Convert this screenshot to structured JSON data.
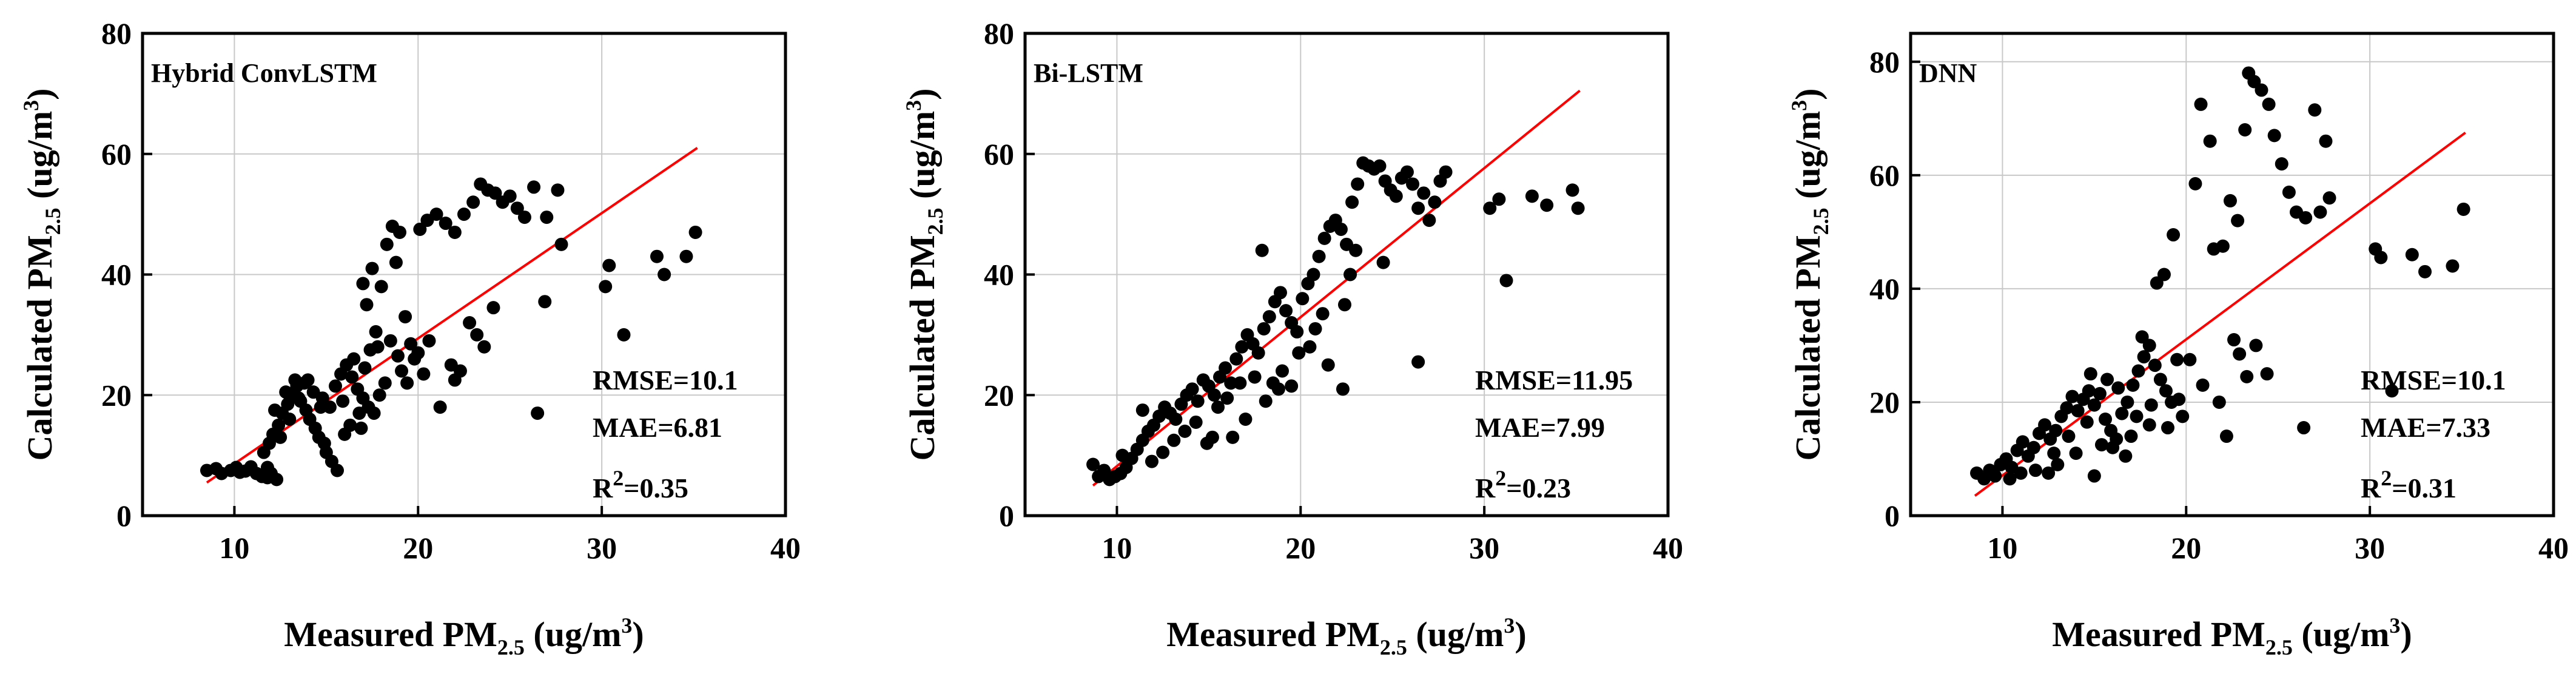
{
  "colors": {
    "points": "#000000",
    "fit_line": "#ff0000",
    "grid": "#c8c8c8",
    "frame": "#000000"
  },
  "chart_data": [
    {
      "type": "scatter",
      "title": "Hybrid ConvLSTM",
      "xlabel": {
        "main": "Measured PM",
        "sub": "2.5",
        "unit_pre": " (ug/m",
        "unit_sup": "3",
        "unit_post": ")"
      },
      "ylabel": {
        "main": "Calculated PM",
        "sub": "2.5",
        "unit_pre": " (ug/m",
        "unit_sup": "3",
        "unit_post": ")"
      },
      "xlim": [
        5,
        40
      ],
      "ylim": [
        0,
        80
      ],
      "xticks": [
        "10",
        "20",
        "30",
        "40"
      ],
      "yticks": [
        "0",
        "20",
        "40",
        "60",
        "80"
      ],
      "grid": true,
      "fit_line": {
        "x": [
          8.5,
          35.2
        ],
        "y": [
          5.5,
          61
        ]
      },
      "metrics": {
        "rmse": "RMSE=10.1",
        "mae": "MAE=6.81",
        "r2_main": "R",
        "r2_sup": "2",
        "r2_value": "=0.35"
      },
      "points": [
        [
          8.5,
          7.5
        ],
        [
          9.0,
          7.8
        ],
        [
          9.3,
          7.0
        ],
        [
          9.8,
          7.5
        ],
        [
          10.1,
          8.0
        ],
        [
          10.3,
          7.2
        ],
        [
          10.6,
          7.4
        ],
        [
          10.9,
          8.1
        ],
        [
          11.2,
          7.0
        ],
        [
          11.5,
          6.5
        ],
        [
          11.8,
          6.3
        ],
        [
          12.0,
          7.0
        ],
        [
          12.3,
          6.0
        ],
        [
          11.6,
          10.5
        ],
        [
          11.9,
          12.0
        ],
        [
          12.1,
          13.5
        ],
        [
          12.4,
          15.0
        ],
        [
          12.6,
          17.0
        ],
        [
          12.9,
          18.5
        ],
        [
          13.1,
          20.0
        ],
        [
          13.4,
          21.5
        ],
        [
          13.6,
          19.0
        ],
        [
          13.9,
          17.5
        ],
        [
          14.1,
          16.0
        ],
        [
          14.4,
          14.5
        ],
        [
          14.6,
          13.0
        ],
        [
          14.9,
          12.0
        ],
        [
          12.2,
          17.5
        ],
        [
          12.8,
          20.5
        ],
        [
          13.3,
          22.5
        ],
        [
          13.8,
          22.0
        ],
        [
          14.3,
          20.5
        ],
        [
          14.8,
          19.5
        ],
        [
          15.2,
          18.0
        ],
        [
          15.5,
          21.5
        ],
        [
          15.8,
          23.5
        ],
        [
          16.1,
          25.0
        ],
        [
          16.4,
          23.0
        ],
        [
          16.7,
          21.0
        ],
        [
          17.0,
          19.5
        ],
        [
          17.3,
          18.0
        ],
        [
          17.6,
          17.0
        ],
        [
          17.9,
          20.0
        ],
        [
          18.2,
          22.0
        ],
        [
          15.0,
          10.5
        ],
        [
          15.3,
          9.0
        ],
        [
          15.6,
          7.5
        ],
        [
          16.0,
          13.5
        ],
        [
          16.3,
          15.0
        ],
        [
          16.8,
          17.0
        ],
        [
          17.1,
          24.5
        ],
        [
          17.4,
          27.5
        ],
        [
          17.7,
          30.5
        ],
        [
          17.2,
          35.0
        ],
        [
          17.0,
          38.5
        ],
        [
          17.5,
          41.0
        ],
        [
          18.0,
          38.0
        ],
        [
          18.3,
          45.0
        ],
        [
          18.6,
          48.0
        ],
        [
          19.0,
          47.0
        ],
        [
          18.8,
          42.0
        ],
        [
          19.3,
          33.0
        ],
        [
          19.6,
          28.5
        ],
        [
          19.8,
          26.0
        ],
        [
          19.1,
          24.0
        ],
        [
          18.5,
          29.0
        ],
        [
          20.1,
          47.5
        ],
        [
          20.5,
          49.0
        ],
        [
          21.0,
          50.0
        ],
        [
          21.5,
          48.5
        ],
        [
          22.0,
          47.0
        ],
        [
          22.5,
          50.0
        ],
        [
          23.0,
          52.0
        ],
        [
          23.4,
          55.0
        ],
        [
          23.8,
          54.0
        ],
        [
          24.2,
          53.5
        ],
        [
          24.6,
          52.0
        ],
        [
          25.0,
          53.0
        ],
        [
          25.4,
          51.0
        ],
        [
          25.8,
          49.5
        ],
        [
          26.3,
          54.5
        ],
        [
          27.0,
          49.5
        ],
        [
          27.6,
          54.0
        ],
        [
          27.8,
          45.0
        ],
        [
          22.8,
          32.0
        ],
        [
          23.2,
          30.0
        ],
        [
          23.6,
          28.0
        ],
        [
          22.3,
          24.0
        ],
        [
          22.0,
          22.5
        ],
        [
          21.2,
          18.0
        ],
        [
          20.0,
          27.0
        ],
        [
          20.6,
          29.0
        ],
        [
          21.8,
          25.0
        ],
        [
          24.1,
          34.5
        ],
        [
          26.5,
          17.0
        ],
        [
          26.9,
          35.5
        ],
        [
          30.2,
          38.0
        ],
        [
          30.4,
          41.5
        ],
        [
          31.2,
          30.0
        ],
        [
          33.0,
          43.0
        ],
        [
          33.4,
          40.0
        ],
        [
          34.6,
          43.0
        ],
        [
          35.1,
          47.0
        ],
        [
          14.0,
          22.5
        ],
        [
          13.5,
          19.5
        ],
        [
          13.0,
          16.0
        ],
        [
          12.5,
          13.0
        ],
        [
          11.8,
          8.0
        ],
        [
          16.5,
          26.0
        ],
        [
          17.8,
          28.0
        ],
        [
          18.9,
          26.5
        ],
        [
          19.4,
          22.0
        ],
        [
          20.3,
          23.5
        ],
        [
          15.9,
          19.0
        ],
        [
          16.9,
          14.5
        ],
        [
          14.7,
          18.0
        ]
      ]
    },
    {
      "type": "scatter",
      "title": "Bi-LSTM",
      "xlabel": {
        "main": "Measured PM",
        "sub": "2.5",
        "unit_pre": " (ug/m",
        "unit_sup": "3",
        "unit_post": ")"
      },
      "ylabel": {
        "main": "Calculated PM",
        "sub": "2.5",
        "unit_pre": " (ug/m",
        "unit_sup": "3",
        "unit_post": ")"
      },
      "xlim": [
        5,
        40
      ],
      "ylim": [
        0,
        80
      ],
      "xticks": [
        "10",
        "20",
        "30",
        "40"
      ],
      "yticks": [
        "0",
        "20",
        "40",
        "60",
        "80"
      ],
      "grid": true,
      "fit_line": {
        "x": [
          8.7,
          35.2
        ],
        "y": [
          5.0,
          70.5
        ]
      },
      "metrics": {
        "rmse": "RMSE=11.95",
        "mae": "MAE=7.99",
        "r2_main": "R",
        "r2_sup": "2",
        "r2_value": "=0.23"
      },
      "points": [
        [
          8.7,
          8.5
        ],
        [
          9.0,
          6.5
        ],
        [
          9.3,
          7.5
        ],
        [
          9.6,
          6.0
        ],
        [
          9.9,
          6.5
        ],
        [
          10.2,
          7.0
        ],
        [
          10.5,
          8.0
        ],
        [
          10.8,
          9.5
        ],
        [
          11.1,
          11.0
        ],
        [
          11.4,
          12.5
        ],
        [
          11.7,
          14.0
        ],
        [
          12.0,
          15.0
        ],
        [
          12.3,
          16.5
        ],
        [
          12.6,
          18.0
        ],
        [
          12.9,
          17.0
        ],
        [
          13.2,
          16.0
        ],
        [
          13.5,
          18.5
        ],
        [
          13.8,
          20.0
        ],
        [
          14.1,
          21.0
        ],
        [
          14.4,
          19.0
        ],
        [
          14.7,
          22.5
        ],
        [
          15.0,
          21.5
        ],
        [
          15.3,
          20.0
        ],
        [
          15.6,
          23.0
        ],
        [
          15.9,
          24.5
        ],
        [
          16.2,
          22.0
        ],
        [
          16.5,
          26.0
        ],
        [
          16.8,
          28.0
        ],
        [
          17.1,
          30.0
        ],
        [
          17.4,
          28.5
        ],
        [
          17.7,
          27.0
        ],
        [
          18.0,
          31.0
        ],
        [
          18.3,
          33.0
        ],
        [
          18.6,
          35.5
        ],
        [
          18.9,
          37.0
        ],
        [
          19.2,
          34.0
        ],
        [
          19.5,
          32.0
        ],
        [
          19.8,
          30.5
        ],
        [
          20.1,
          36.0
        ],
        [
          20.4,
          38.5
        ],
        [
          20.7,
          40.0
        ],
        [
          21.0,
          43.0
        ],
        [
          21.3,
          46.0
        ],
        [
          21.6,
          48.0
        ],
        [
          21.9,
          49.0
        ],
        [
          22.2,
          47.5
        ],
        [
          22.5,
          45.0
        ],
        [
          22.8,
          52.0
        ],
        [
          23.1,
          55.0
        ],
        [
          23.4,
          58.5
        ],
        [
          23.7,
          58.0
        ],
        [
          24.0,
          57.5
        ],
        [
          24.3,
          58.0
        ],
        [
          24.6,
          55.5
        ],
        [
          24.9,
          54.0
        ],
        [
          25.2,
          53.0
        ],
        [
          25.5,
          56.0
        ],
        [
          25.8,
          57.0
        ],
        [
          26.1,
          55.0
        ],
        [
          26.4,
          51.0
        ],
        [
          26.7,
          53.5
        ],
        [
          27.0,
          49.0
        ],
        [
          27.3,
          52.0
        ],
        [
          27.6,
          55.5
        ],
        [
          27.9,
          57.0
        ],
        [
          23.0,
          44.0
        ],
        [
          22.7,
          40.0
        ],
        [
          22.4,
          35.0
        ],
        [
          21.5,
          25.0
        ],
        [
          22.3,
          21.0
        ],
        [
          20.5,
          28.0
        ],
        [
          19.9,
          27.0
        ],
        [
          19.0,
          24.0
        ],
        [
          18.5,
          22.0
        ],
        [
          17.5,
          23.0
        ],
        [
          16.7,
          22.0
        ],
        [
          16.0,
          19.5
        ],
        [
          15.5,
          18.0
        ],
        [
          15.2,
          13.0
        ],
        [
          14.9,
          12.0
        ],
        [
          16.3,
          13.0
        ],
        [
          17.0,
          16.0
        ],
        [
          18.1,
          19.0
        ],
        [
          18.8,
          21.0
        ],
        [
          19.5,
          21.5
        ],
        [
          20.8,
          31.0
        ],
        [
          21.2,
          33.5
        ],
        [
          24.5,
          42.0
        ],
        [
          26.4,
          25.5
        ],
        [
          30.3,
          51.0
        ],
        [
          30.8,
          52.5
        ],
        [
          31.2,
          39.0
        ],
        [
          32.6,
          53.0
        ],
        [
          33.4,
          51.5
        ],
        [
          34.8,
          54.0
        ],
        [
          35.1,
          51.0
        ],
        [
          12.5,
          10.5
        ],
        [
          13.1,
          12.5
        ],
        [
          13.7,
          14.0
        ],
        [
          14.3,
          15.5
        ],
        [
          11.4,
          17.5
        ],
        [
          17.9,
          44.0
        ],
        [
          10.3,
          10.0
        ],
        [
          11.9,
          9.0
        ]
      ]
    },
    {
      "type": "scatter",
      "title": "DNN",
      "xlabel": {
        "main": "Measured PM",
        "sub": "2.5",
        "unit_pre": " (ug/m",
        "unit_sup": "3",
        "unit_post": ")"
      },
      "ylabel": {
        "main": "Calculated PM",
        "sub": "2.5",
        "unit_pre": " (ug/m",
        "unit_sup": "3",
        "unit_post": ")"
      },
      "xlim": [
        5,
        40
      ],
      "ylim": [
        0,
        85
      ],
      "xticks": [
        "10",
        "20",
        "30",
        "40"
      ],
      "yticks": [
        "0",
        "20",
        "40",
        "60",
        "80"
      ],
      "grid": true,
      "fit_line": {
        "x": [
          8.5,
          35.2
        ],
        "y": [
          3.5,
          67.5
        ]
      },
      "metrics": {
        "rmse": "RMSE=10.1",
        "mae": "MAE=7.33",
        "r2_main": "R",
        "r2_sup": "2",
        "r2_value": "=0.31"
      },
      "points": [
        [
          8.6,
          7.5
        ],
        [
          9.0,
          6.5
        ],
        [
          9.3,
          8.0
        ],
        [
          9.6,
          7.0
        ],
        [
          9.9,
          9.0
        ],
        [
          10.2,
          10.0
        ],
        [
          10.5,
          8.5
        ],
        [
          10.8,
          11.5
        ],
        [
          11.1,
          13.0
        ],
        [
          11.4,
          10.5
        ],
        [
          11.7,
          12.0
        ],
        [
          12.0,
          14.5
        ],
        [
          12.3,
          16.0
        ],
        [
          12.6,
          13.5
        ],
        [
          12.9,
          15.0
        ],
        [
          13.2,
          17.5
        ],
        [
          13.5,
          19.0
        ],
        [
          13.8,
          21.0
        ],
        [
          14.1,
          18.5
        ],
        [
          14.4,
          20.5
        ],
        [
          14.7,
          22.0
        ],
        [
          15.0,
          19.5
        ],
        [
          15.3,
          21.5
        ],
        [
          15.6,
          17.0
        ],
        [
          15.9,
          15.0
        ],
        [
          16.2,
          13.5
        ],
        [
          16.5,
          18.0
        ],
        [
          16.8,
          20.0
        ],
        [
          17.1,
          23.0
        ],
        [
          17.4,
          25.5
        ],
        [
          17.7,
          28.0
        ],
        [
          18.0,
          30.0
        ],
        [
          18.3,
          26.5
        ],
        [
          18.6,
          24.0
        ],
        [
          18.9,
          22.0
        ],
        [
          19.2,
          20.0
        ],
        [
          19.5,
          27.5
        ],
        [
          13.0,
          9.0
        ],
        [
          14.0,
          11.0
        ],
        [
          15.0,
          7.0
        ],
        [
          16.0,
          12.0
        ],
        [
          17.0,
          14.0
        ],
        [
          18.0,
          16.0
        ],
        [
          19.0,
          15.5
        ],
        [
          19.8,
          17.5
        ],
        [
          20.5,
          58.5
        ],
        [
          20.8,
          72.5
        ],
        [
          21.3,
          66.0
        ],
        [
          21.5,
          47.0
        ],
        [
          22.0,
          47.5
        ],
        [
          22.4,
          55.5
        ],
        [
          22.8,
          52.0
        ],
        [
          23.2,
          68.0
        ],
        [
          23.4,
          78.0
        ],
        [
          23.7,
          76.5
        ],
        [
          24.1,
          75.0
        ],
        [
          24.5,
          72.5
        ],
        [
          24.8,
          67.0
        ],
        [
          25.2,
          62.0
        ],
        [
          25.6,
          57.0
        ],
        [
          26.0,
          53.5
        ],
        [
          26.5,
          52.5
        ],
        [
          27.0,
          71.5
        ],
        [
          27.3,
          53.5
        ],
        [
          27.6,
          66.0
        ],
        [
          27.8,
          56.0
        ],
        [
          22.6,
          31.0
        ],
        [
          22.9,
          28.5
        ],
        [
          23.3,
          24.5
        ],
        [
          23.8,
          30.0
        ],
        [
          21.8,
          20.0
        ],
        [
          22.2,
          14.0
        ],
        [
          24.4,
          25.0
        ],
        [
          26.4,
          15.5
        ],
        [
          20.2,
          27.5
        ],
        [
          20.9,
          23.0
        ],
        [
          30.3,
          47.0
        ],
        [
          30.6,
          45.5
        ],
        [
          31.2,
          22.0
        ],
        [
          32.3,
          46.0
        ],
        [
          33.0,
          43.0
        ],
        [
          34.5,
          44.0
        ],
        [
          35.1,
          54.0
        ],
        [
          11.8,
          8.0
        ],
        [
          12.5,
          7.5
        ],
        [
          13.6,
          14.0
        ],
        [
          14.6,
          16.5
        ],
        [
          15.4,
          12.5
        ],
        [
          16.7,
          10.5
        ],
        [
          17.6,
          31.5
        ],
        [
          18.4,
          41.0
        ],
        [
          18.8,
          42.5
        ],
        [
          19.3,
          49.5
        ],
        [
          10.4,
          6.5
        ],
        [
          11.0,
          7.5
        ],
        [
          12.8,
          11.0
        ],
        [
          17.3,
          17.5
        ],
        [
          18.1,
          19.5
        ],
        [
          19.6,
          20.5
        ],
        [
          16.3,
          22.5
        ],
        [
          15.7,
          24.0
        ],
        [
          14.8,
          25.0
        ]
      ]
    }
  ]
}
